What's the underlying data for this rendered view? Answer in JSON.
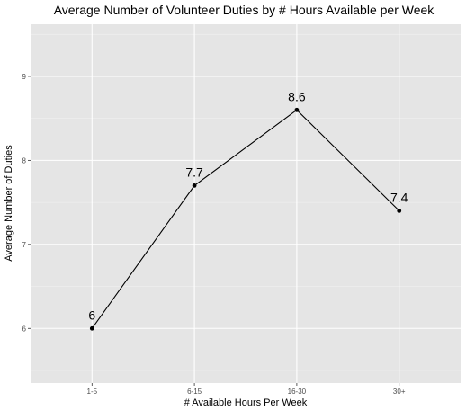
{
  "chart_data": {
    "type": "line",
    "title": "Average Number of Volunteer Duties by # Hours Available per Week",
    "xlabel": "# Available Hours Per Week",
    "ylabel": "Average Number of Duties",
    "categories": [
      "1-5",
      "6-15",
      "16-30",
      "30+"
    ],
    "values": [
      6,
      7.7,
      8.6,
      7.4
    ],
    "data_labels": [
      "6",
      "7.7",
      "8.6",
      "7.4"
    ],
    "ylim": [
      5.35,
      9.62
    ],
    "yticks": [
      6,
      7,
      8,
      9
    ],
    "ytick_labels": [
      "6",
      "7",
      "8",
      "9"
    ],
    "grid": true,
    "legend": "none",
    "colors": {
      "panel_background": "#e5e5e5",
      "grid_major": "#ffffff",
      "line": "#000000",
      "point": "#000000",
      "tick_text": "#4d4d4d"
    }
  }
}
